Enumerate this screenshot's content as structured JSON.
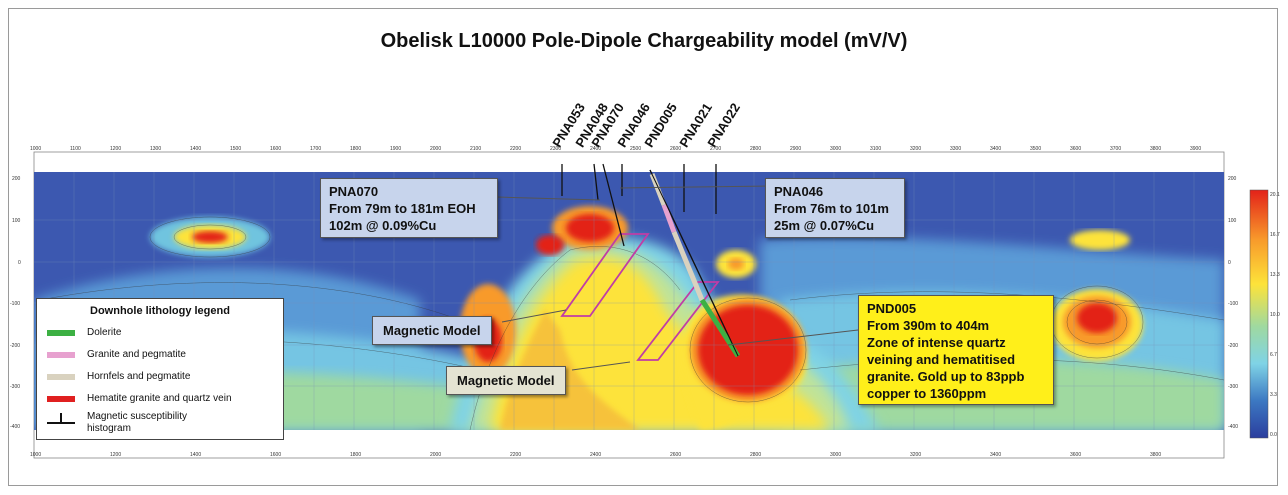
{
  "title": "Obelisk L10000 Pole-Dipole Chargeability model (mV/V)",
  "drillholes": [
    "PNA053",
    "PNA048",
    "PNA070",
    "PNA046",
    "PND005",
    "PNA021",
    "PNA022"
  ],
  "annotations": {
    "pna070": {
      "line1": "PNA070",
      "line2": "From 79m to 181m EOH",
      "line3": "102m @ 0.09%Cu"
    },
    "pna046": {
      "line1": "PNA046",
      "line2": "From 76m to 101m",
      "line3": "25m @ 0.07%Cu"
    },
    "pnd005": {
      "line1": "PND005",
      "line2": "From 390m to 404m",
      "line3": "Zone of intense quartz",
      "line4": "veining and hematitised",
      "line5": "granite. Gold up to 83ppb",
      "line6": "copper to 1360ppm"
    },
    "magnetic1": "Magnetic Model",
    "magnetic2": "Magnetic Model"
  },
  "legend": {
    "title": "Downhole lithology legend",
    "items": [
      {
        "label": "Dolerite",
        "color": "#3cb043"
      },
      {
        "label": "Granite and pegmatite",
        "color": "#e7a1cf"
      },
      {
        "label": "Hornfels and pegmatite",
        "color": "#d9d2bf"
      },
      {
        "label": "Hematite granite and quartz vein",
        "color": "#e02020"
      },
      {
        "label": "Magnetic susceptibility histogram",
        "color": "#111111"
      }
    ]
  },
  "x_ticks": [
    "1000",
    "1100",
    "1200",
    "1300",
    "1400",
    "1500",
    "1600",
    "1700",
    "1800",
    "1900",
    "2000",
    "2100",
    "2200",
    "2300",
    "2400",
    "2500",
    "2600",
    "2700",
    "2800",
    "2900",
    "3000",
    "3100",
    "3200",
    "3300",
    "3400",
    "3500",
    "3600",
    "3700",
    "3800",
    "3900"
  ],
  "y_ticks": [
    "200",
    "100",
    "0",
    "-100",
    "-200",
    "-300",
    "-400"
  ],
  "colorbar_ticks": [
    "20.1",
    "16.7",
    "13.3",
    "10.0",
    "6.7",
    "3.3",
    "0.0"
  ],
  "colors": {
    "low": "#2b3e9e",
    "mid": "#7fd3e6",
    "green": "#9fd9a0",
    "yellow": "#fde33a",
    "orange": "#f89a2b",
    "high": "#e32219"
  }
}
